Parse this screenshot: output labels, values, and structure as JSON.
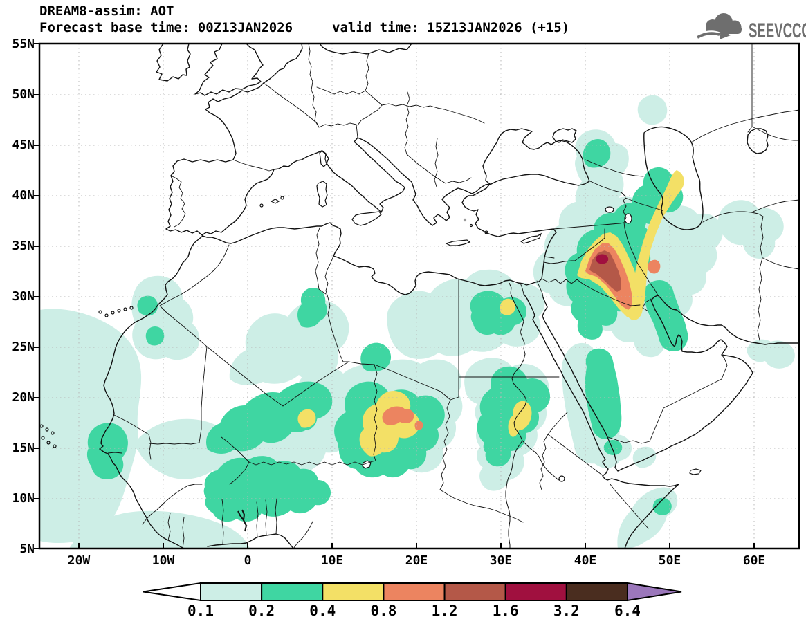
{
  "header": {
    "title": "DREAM8-assim: AOT",
    "forecast_base": "Forecast base time: 00Z13JAN2026",
    "valid_time": "valid time: 15Z13JAN2026 (+15)"
  },
  "logo": {
    "text": "SEEVCCC",
    "color": "#6e6e6e"
  },
  "map": {
    "lat_labels": [
      "55N",
      "50N",
      "45N",
      "40N",
      "35N",
      "30N",
      "25N",
      "20N",
      "15N",
      "10N",
      "5N"
    ],
    "lon_labels": [
      "20W",
      "10W",
      "0",
      "10E",
      "20E",
      "30E",
      "40E",
      "50E",
      "60E"
    ]
  },
  "colorbar": {
    "values": [
      "0.1",
      "0.2",
      "0.4",
      "0.8",
      "1.2",
      "1.6",
      "3.2",
      "6.4"
    ],
    "cell_colors": [
      "#cdeee6",
      "#3fd6a2",
      "#f3e066",
      "#ec8460",
      "#b45848",
      "#a0103f",
      "#4a2d1f"
    ],
    "below_min_color": "#ffffff",
    "above_max_color": "#9b77bb"
  },
  "aot_maxima": [
    {
      "region": "Iraq-Syria (Mesopotamia plume)",
      "max_bin": "1.6-3.2"
    },
    {
      "region": "West Caspian / Azerbaijan band",
      "max_bin": "0.4-0.8"
    },
    {
      "region": "Chad (Bodele) plume",
      "max_bin": "0.8-1.2"
    },
    {
      "region": "Sudan plume",
      "max_bin": "0.4-0.8"
    },
    {
      "region": "NW Egypt spot",
      "max_bin": "0.4-0.8"
    },
    {
      "region": "Sahel / West Africa wash",
      "max_bin": "0.2-0.4"
    },
    {
      "region": "Red Sea coastal band",
      "max_bin": "0.2-0.4"
    }
  ]
}
